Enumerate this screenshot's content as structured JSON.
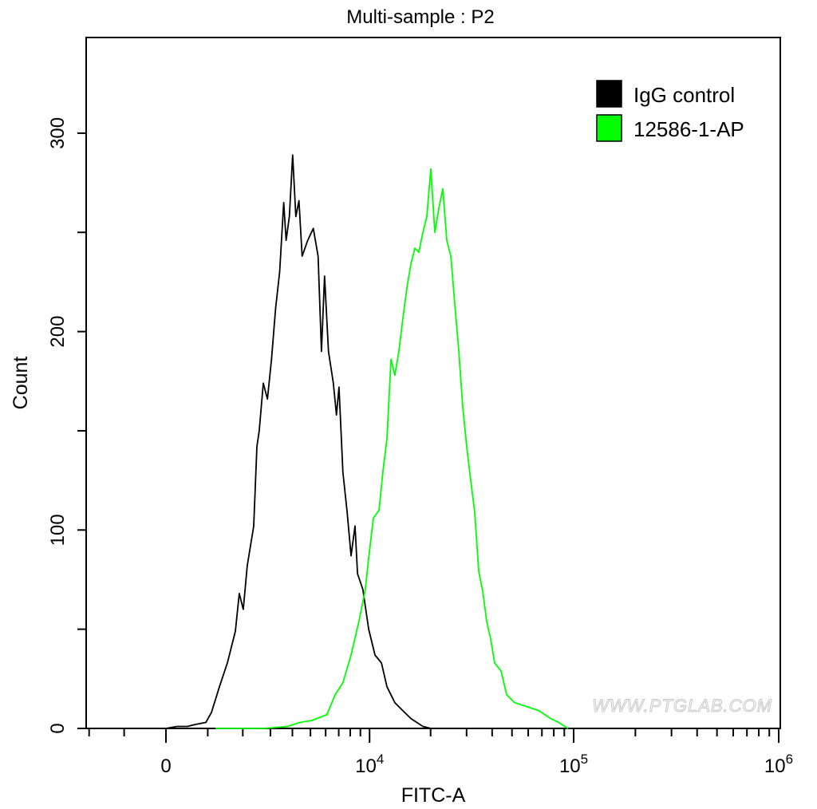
{
  "chart_data": {
    "type": "line",
    "title": "Multi-sample : P2",
    "xlabel": "FITC-A",
    "ylabel": "Count",
    "x_scale": "biexponential",
    "xlim": [
      -2100,
      1000000
    ],
    "ylim": [
      0,
      348
    ],
    "grid": false,
    "legend_position": "top-right",
    "x_ticks": [
      {
        "value": 0,
        "label": "0",
        "sup": ""
      },
      {
        "value": 10000,
        "label": "10",
        "sup": "4"
      },
      {
        "value": 100000,
        "label": "10",
        "sup": "5"
      },
      {
        "value": 1000000,
        "label": "10",
        "sup": "6"
      }
    ],
    "y_ticks": [
      0,
      100,
      200,
      300
    ],
    "y_tick_labels": [
      "0",
      "100",
      "200",
      "300"
    ],
    "watermark": "WWW.PTGLAB.COM",
    "series": [
      {
        "name": "IgG control",
        "color": "#000000",
        "x": [
          0,
          257,
          501,
          694,
          950,
          1094,
          1307,
          1532,
          1767,
          1889,
          2014,
          2145,
          2367,
          2482,
          2566,
          2720,
          2880,
          3045,
          3219,
          3394,
          3578,
          3693,
          3849,
          4010,
          4174,
          4340,
          4515,
          4837,
          5176,
          5481,
          5707,
          5923,
          6206,
          6570,
          6816,
          7021,
          7350,
          7719,
          8079,
          8458,
          8705,
          9259,
          9895,
          10645,
          11456,
          12195,
          13345,
          14597,
          16013,
          18333,
          20058
        ],
        "y": [
          0,
          1,
          1,
          2,
          3,
          8,
          21,
          33,
          49,
          68,
          60,
          82,
          102,
          142,
          150,
          174,
          166,
          186,
          212,
          230,
          265,
          246,
          258,
          289,
          258,
          266,
          238,
          246,
          252,
          238,
          190,
          228,
          190,
          174,
          158,
          172,
          129,
          109,
          87,
          102,
          78,
          70,
          50,
          37,
          33,
          21,
          13,
          9,
          5,
          1,
          0
        ]
      },
      {
        "name": "12586-1-AP",
        "color": "#00ff00",
        "x": [
          1201,
          1889,
          2720,
          3769,
          4383,
          5077,
          6093,
          6713,
          7350,
          8079,
          8848,
          9526,
          9895,
          10450,
          11148,
          11661,
          12195,
          12770,
          13345,
          13960,
          14597,
          15295,
          16013,
          16752,
          17512,
          18333,
          19175,
          20058,
          20982,
          21947,
          22953,
          24020,
          25129,
          26278,
          27489,
          28742,
          30056,
          31452,
          32889,
          34408,
          35989,
          37631,
          39356,
          41163,
          44201,
          47075,
          51489,
          58921,
          67441,
          77131,
          84378,
          93904
        ],
        "y": [
          0,
          0,
          0,
          1,
          3,
          4,
          7,
          17,
          23,
          37,
          54,
          70,
          86,
          106,
          110,
          130,
          146,
          186,
          178,
          190,
          206,
          222,
          234,
          242,
          240,
          250,
          258,
          282,
          250,
          262,
          272,
          246,
          238,
          214,
          190,
          162,
          142,
          125,
          109,
          79,
          69,
          54,
          45,
          33,
          29,
          17,
          13,
          11,
          9,
          5,
          3,
          0
        ]
      }
    ]
  }
}
